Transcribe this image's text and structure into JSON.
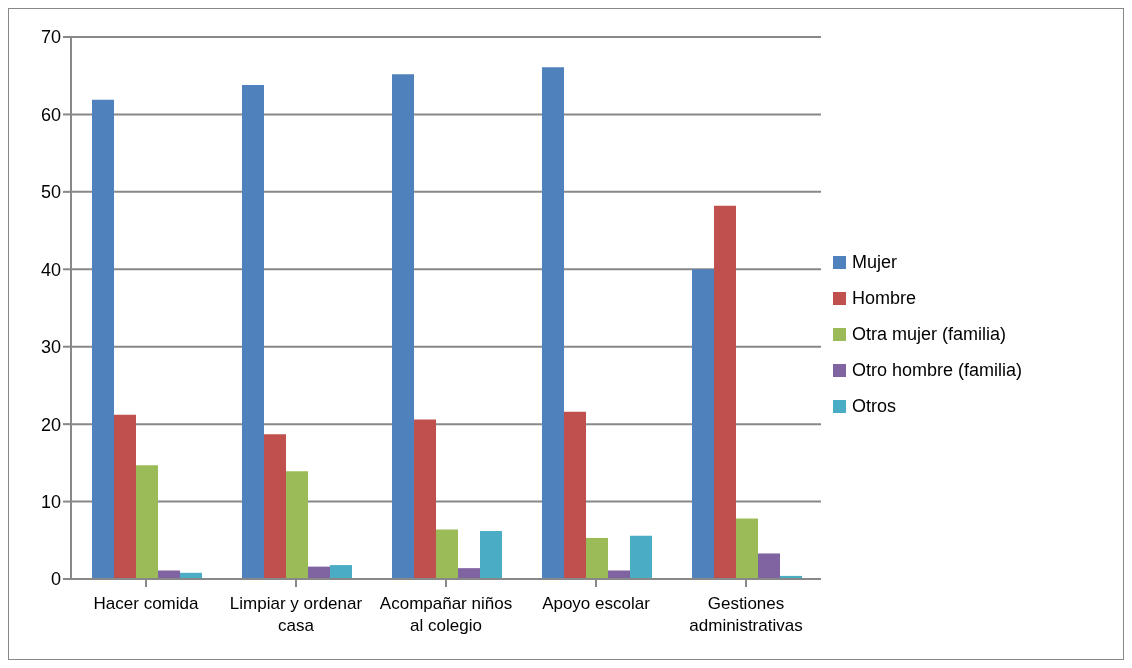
{
  "chart_data": {
    "type": "bar",
    "categories": [
      "Hacer comida",
      "Limpiar y ordenar casa",
      "Acompañar niños al colegio",
      "Apoyo escolar",
      "Gestiones administrativas"
    ],
    "series": [
      {
        "name": "Mujer",
        "color": "#4f81bd",
        "values": [
          61.9,
          63.8,
          65.2,
          66.1,
          40
        ]
      },
      {
        "name": "Hombre",
        "color": "#c0504d",
        "values": [
          21.2,
          18.7,
          20.6,
          21.6,
          48.2
        ]
      },
      {
        "name": "Otra mujer (familia)",
        "color": "#9bbb59",
        "values": [
          14.7,
          13.9,
          6.4,
          5.3,
          7.8
        ]
      },
      {
        "name": "Otro hombre (familia)",
        "color": "#8064a2",
        "values": [
          1.1,
          1.6,
          1.4,
          1.1,
          3.3
        ]
      },
      {
        "name": "Otros",
        "color": "#4bacc6",
        "values": [
          0.8,
          1.8,
          6.2,
          5.6,
          0.4
        ]
      }
    ],
    "ylim": [
      0,
      70
    ],
    "yticks": [
      0,
      10,
      20,
      30,
      40,
      50,
      60,
      70
    ],
    "grid": "y",
    "legend": "right"
  }
}
